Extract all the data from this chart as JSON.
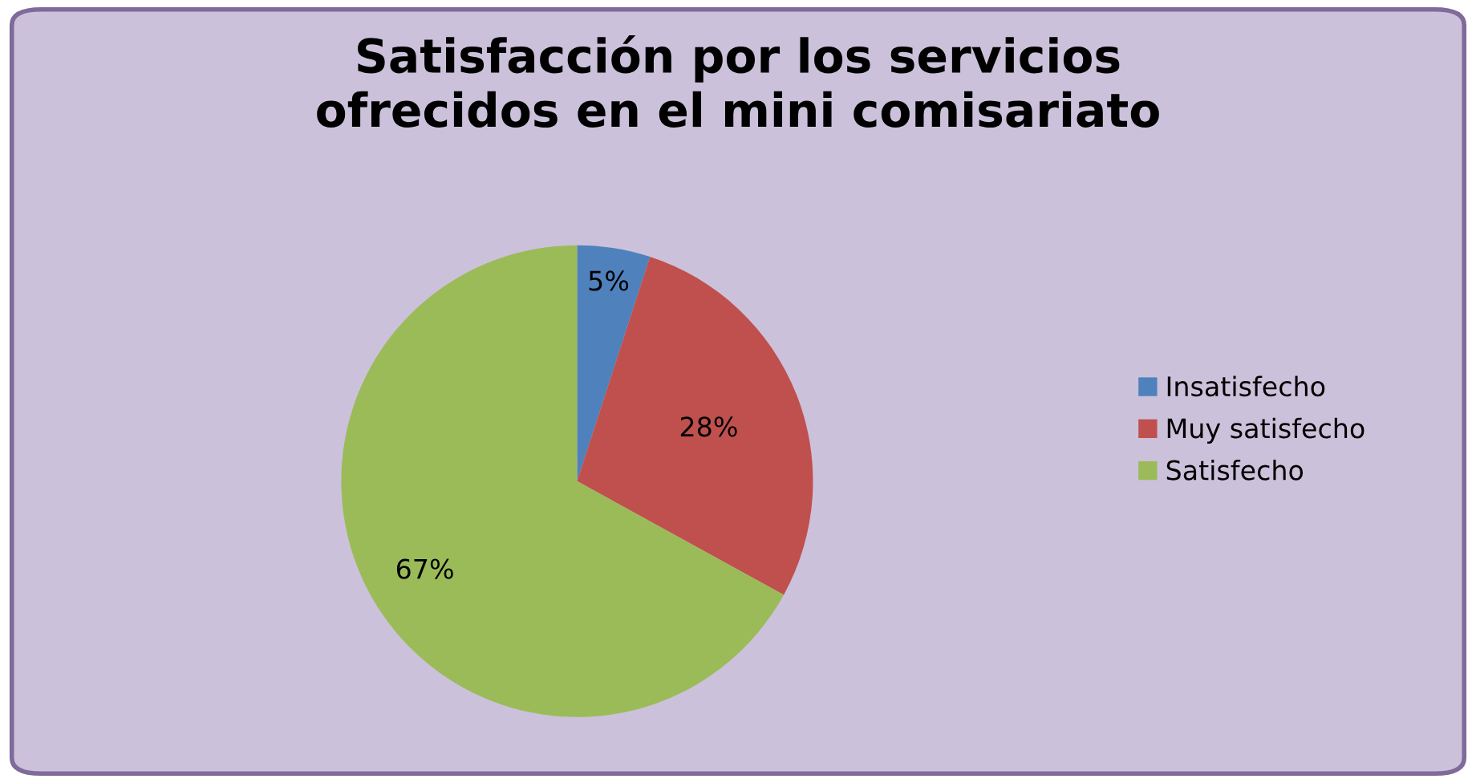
{
  "chart_data": {
    "type": "pie",
    "title": "Satisfacción por los servicios\nofrecidos en el mini comisariato",
    "categories": [
      "Insatisfecho",
      "Muy satisfecho",
      "Satisfecho"
    ],
    "values": [
      5,
      28,
      67
    ],
    "colors": [
      "#4f81bd",
      "#c0504d",
      "#9bbb59"
    ],
    "value_labels": [
      "5%",
      "28%",
      "67%"
    ],
    "legend": "right"
  }
}
